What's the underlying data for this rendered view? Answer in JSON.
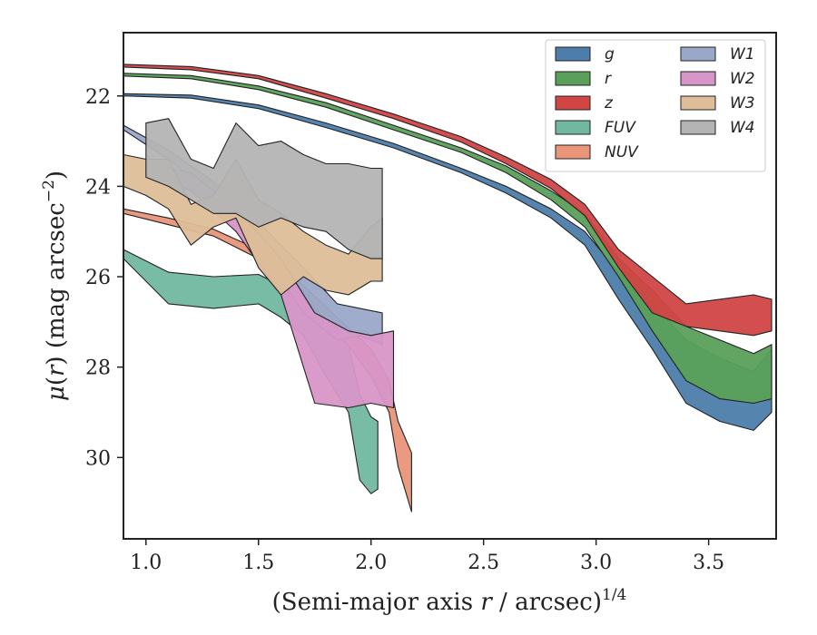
{
  "chart_data": {
    "type": "area",
    "xlabel": "(Semi-major axis r / arcsec)^{1/4}",
    "ylabel": "μ(r) (mag arcsec^{−2})",
    "xlim": [
      0.9,
      3.8
    ],
    "ylim": [
      31.8,
      20.6
    ],
    "y_inverted": true,
    "xticks": [
      "1.0",
      "1.5",
      "2.0",
      "2.5",
      "3.0",
      "3.5"
    ],
    "yticks": [
      "22",
      "24",
      "26",
      "28",
      "30"
    ],
    "grid": false,
    "legend": {
      "placement": "top-right",
      "columns": 2
    },
    "series": [
      {
        "name": "g",
        "color": "#4C7DAB",
        "x": [
          0.9,
          1.2,
          1.5,
          1.8,
          2.1,
          2.4,
          2.6,
          2.8,
          2.95,
          3.1,
          3.25,
          3.4,
          3.55,
          3.7,
          3.78
        ],
        "y_upper": [
          21.95,
          21.98,
          22.2,
          22.6,
          23.05,
          23.6,
          24.0,
          24.5,
          25.0,
          25.9,
          26.6,
          27.4,
          27.8,
          28.1,
          27.6
        ],
        "y_lower": [
          22.0,
          22.05,
          22.28,
          22.7,
          23.15,
          23.7,
          24.15,
          24.7,
          25.3,
          26.5,
          27.6,
          28.8,
          29.2,
          29.4,
          29.0
        ]
      },
      {
        "name": "r",
        "color": "#5AA05A",
        "x": [
          0.9,
          1.2,
          1.5,
          1.8,
          2.1,
          2.4,
          2.6,
          2.8,
          2.95,
          3.1,
          3.25,
          3.4,
          3.55,
          3.7,
          3.78
        ],
        "y_upper": [
          21.5,
          21.55,
          21.78,
          22.15,
          22.65,
          23.15,
          23.55,
          24.1,
          24.6,
          25.6,
          26.3,
          27.1,
          27.4,
          27.7,
          27.5
        ],
        "y_lower": [
          21.56,
          21.62,
          21.86,
          22.25,
          22.75,
          23.25,
          23.7,
          24.3,
          24.9,
          26.0,
          27.2,
          28.3,
          28.7,
          28.8,
          28.7
        ]
      },
      {
        "name": "z",
        "color": "#D14545",
        "x": [
          0.9,
          1.2,
          1.5,
          1.8,
          2.1,
          2.4,
          2.6,
          2.8,
          2.95,
          3.1,
          3.25,
          3.4,
          3.55,
          3.7,
          3.78
        ],
        "y_upper": [
          21.3,
          21.35,
          21.55,
          21.95,
          22.4,
          22.9,
          23.35,
          23.85,
          24.4,
          25.4,
          26.0,
          26.6,
          26.5,
          26.4,
          26.5
        ],
        "y_lower": [
          21.36,
          21.42,
          21.62,
          22.05,
          22.5,
          23.02,
          23.5,
          24.05,
          24.65,
          25.8,
          26.8,
          27.1,
          27.2,
          27.3,
          27.2
        ]
      },
      {
        "name": "FUV",
        "color": "#72B8A0",
        "x": [
          0.9,
          1.1,
          1.3,
          1.5,
          1.6,
          1.7,
          1.8,
          1.9,
          1.95,
          2.0,
          2.03
        ],
        "y_upper": [
          25.4,
          25.9,
          26.0,
          25.95,
          26.2,
          26.6,
          27.2,
          27.5,
          28.6,
          29.1,
          29.2
        ],
        "y_lower": [
          25.6,
          26.6,
          26.7,
          26.6,
          26.9,
          27.3,
          28.2,
          29.0,
          30.5,
          30.8,
          30.7
        ]
      },
      {
        "name": "NUV",
        "color": "#E8957A",
        "x": [
          0.9,
          1.1,
          1.3,
          1.5,
          1.7,
          1.85,
          2.0,
          2.08,
          2.12,
          2.18
        ],
        "y_upper": [
          24.5,
          24.7,
          24.95,
          25.4,
          26.2,
          26.9,
          27.6,
          28.3,
          29.2,
          29.9
        ],
        "y_lower": [
          24.6,
          24.85,
          25.1,
          25.6,
          26.45,
          27.2,
          28.2,
          29.0,
          30.2,
          31.2
        ]
      },
      {
        "name": "W1",
        "color": "#9AA8C8",
        "x": [
          0.9,
          1.1,
          1.3,
          1.5,
          1.7,
          1.85,
          1.95,
          2.05
        ],
        "y_upper": [
          22.65,
          23.2,
          23.9,
          24.8,
          25.8,
          26.6,
          26.7,
          26.8
        ],
        "y_lower": [
          22.75,
          23.4,
          24.2,
          25.3,
          26.8,
          27.4,
          27.3,
          27.5
        ]
      },
      {
        "name": "W2",
        "color": "#D896C8",
        "x": [
          1.0,
          1.2,
          1.4,
          1.6,
          1.75,
          1.9,
          2.0,
          2.1
        ],
        "y_upper": [
          23.5,
          23.7,
          24.5,
          25.6,
          26.8,
          27.2,
          27.3,
          27.2
        ],
        "y_lower": [
          23.7,
          24.1,
          25.0,
          26.4,
          28.8,
          28.9,
          28.8,
          28.9
        ]
      },
      {
        "name": "W3",
        "color": "#DDBE98",
        "x": [
          0.9,
          1.0,
          1.1,
          1.2,
          1.3,
          1.4,
          1.5,
          1.6,
          1.7,
          1.8,
          1.9,
          2.0,
          2.05
        ],
        "y_upper": [
          23.3,
          23.4,
          23.4,
          24.4,
          24.2,
          23.4,
          24.3,
          24.6,
          25.0,
          25.3,
          25.5,
          24.9,
          24.7
        ],
        "y_lower": [
          24.0,
          24.2,
          24.5,
          25.3,
          24.9,
          24.7,
          25.8,
          26.4,
          26.0,
          26.3,
          26.4,
          26.1,
          26.1
        ]
      },
      {
        "name": "W4",
        "color": "#B4B4B4",
        "x": [
          1.0,
          1.1,
          1.2,
          1.3,
          1.4,
          1.5,
          1.6,
          1.7,
          1.8,
          1.9,
          2.0,
          2.05
        ],
        "y_upper": [
          22.6,
          22.5,
          23.4,
          23.6,
          22.6,
          23.1,
          23.0,
          23.3,
          23.5,
          23.5,
          23.6,
          23.6
        ],
        "y_lower": [
          23.8,
          24.0,
          24.3,
          24.6,
          24.6,
          24.9,
          24.7,
          24.9,
          25.0,
          25.4,
          25.6,
          25.6
        ]
      }
    ]
  }
}
